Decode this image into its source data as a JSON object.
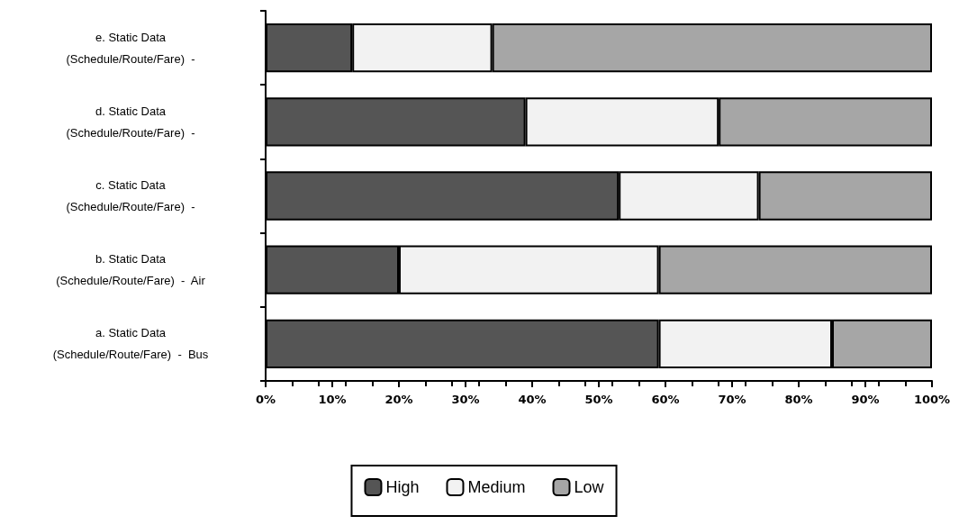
{
  "chart_data": {
    "type": "bar",
    "orientation": "horizontal",
    "stacked": true,
    "categories": [
      "e. Static Data\n(Schedule/Route/Fare)  -",
      "d. Static Data\n(Schedule/Route/Fare)  -",
      "c. Static Data\n(Schedule/Route/Fare)  -",
      "b. Static Data\n(Schedule/Route/Fare)  -  Air",
      "a. Static Data\n(Schedule/Route/Fare)  -  Bus"
    ],
    "series": [
      {
        "name": "High",
        "color": "#555555",
        "values": [
          13,
          39,
          53,
          20,
          59
        ]
      },
      {
        "name": "Medium",
        "color": "#f2f2f2",
        "values": [
          21,
          29,
          21,
          39,
          26
        ]
      },
      {
        "name": "Low",
        "color": "#a6a6a6",
        "values": [
          66,
          32,
          26,
          41,
          15
        ]
      }
    ],
    "xlim": [
      0,
      100
    ],
    "xticks": [
      {
        "value": 0,
        "label": "0%"
      },
      {
        "value": 10,
        "label": "10%"
      },
      {
        "value": 20,
        "label": "20%"
      },
      {
        "value": 30,
        "label": "30%"
      },
      {
        "value": 40,
        "label": "40%"
      },
      {
        "value": 50,
        "label": "50%"
      },
      {
        "value": 60,
        "label": "60%"
      },
      {
        "value": 70,
        "label": "70%"
      },
      {
        "value": 80,
        "label": "80%"
      },
      {
        "value": 90,
        "label": "90%"
      },
      {
        "value": 100,
        "label": "100%"
      }
    ],
    "grid": false,
    "legend": "bottom"
  }
}
